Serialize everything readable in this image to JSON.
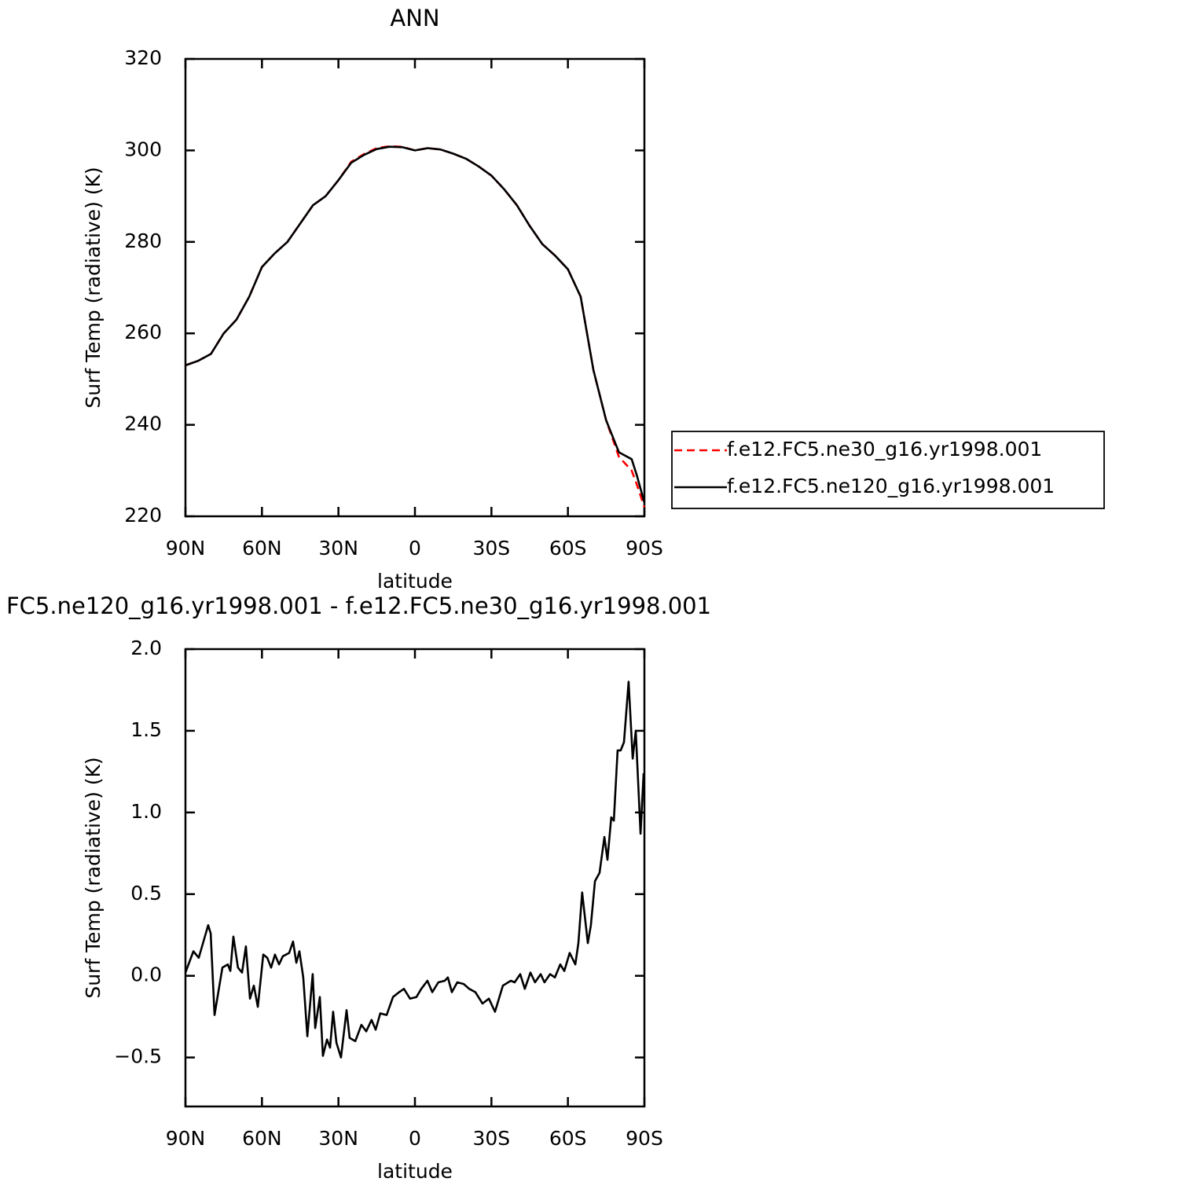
{
  "chart_data": [
    {
      "type": "line",
      "title": "ANN",
      "xlabel": "latitude",
      "ylabel": "Surf Temp (radiative) (K)",
      "x": [
        90,
        85,
        80,
        75,
        70,
        65,
        60,
        55,
        50,
        45,
        40,
        35,
        30,
        25,
        20,
        15,
        10,
        5,
        0,
        -5,
        -10,
        -15,
        -20,
        -25,
        -30,
        -35,
        -40,
        -45,
        -50,
        -55,
        -60,
        -65,
        -70,
        -75,
        -80,
        -85,
        -87,
        -90
      ],
      "series": [
        {
          "name": "f.e12.FC5.ne30_g16.yr1998.001",
          "color": "#ff0000",
          "line_style": "dashed",
          "values": [
            253,
            254,
            255.5,
            260,
            263,
            268,
            274.5,
            277.5,
            280,
            284,
            288,
            290,
            293.5,
            297.5,
            299.2,
            300.5,
            300.9,
            300.8,
            300,
            300.5,
            300.2,
            299.3,
            298.2,
            296.5,
            294.5,
            291.5,
            288,
            283.5,
            279.5,
            277,
            274,
            268,
            252,
            241,
            233,
            230,
            227,
            222
          ]
        },
        {
          "name": "f.e12.FC5.ne120_g16.yr1998.001",
          "color": "#000000",
          "line_style": "solid",
          "values": [
            253,
            254,
            255.5,
            260,
            263,
            268,
            274.5,
            277.5,
            280,
            284,
            288,
            290,
            293.5,
            297.3,
            299,
            300.3,
            300.8,
            300.7,
            300,
            300.5,
            300.2,
            299.3,
            298.2,
            296.5,
            294.5,
            291.5,
            288,
            283.5,
            279.5,
            277,
            274,
            268,
            252,
            241,
            234,
            232.5,
            229,
            223
          ]
        }
      ],
      "xlim": [
        90,
        -90
      ],
      "xticks": [
        {
          "value": 90,
          "label": "90N"
        },
        {
          "value": 60,
          "label": "60N"
        },
        {
          "value": 30,
          "label": "30N"
        },
        0,
        {
          "value": -30,
          "label": "30S"
        },
        {
          "value": -60,
          "label": "60S"
        },
        {
          "value": -90,
          "label": "90S"
        }
      ],
      "ylim": [
        220,
        320
      ],
      "yticks": [
        220,
        240,
        260,
        280,
        300,
        320
      ],
      "legend": "right"
    },
    {
      "type": "line",
      "title": "FC5.ne120_g16.yr1998.001 - f.e12.FC5.ne30_g16.yr1998.001",
      "xlabel": "latitude",
      "ylabel": "Surf Temp (radiative) (K)",
      "color": "#000000",
      "x": [
        90,
        86.9,
        84.8,
        81.1,
        80.1,
        78.6,
        75.5,
        73.4,
        72.4,
        71.2,
        69.4,
        67.8,
        66.3,
        64.7,
        63.2,
        61.6,
        59.5,
        57.9,
        56.4,
        54.9,
        53.3,
        51.8,
        49.3,
        47.8,
        46.5,
        45.3,
        43.8,
        42.2,
        40.1,
        39.1,
        37.3,
        36.1,
        34.5,
        33.3,
        32.1,
        30.8,
        29,
        26.8,
        25.6,
        23.4,
        21,
        19.1,
        17,
        15.4,
        13.6,
        11.1,
        8.6,
        6.2,
        4.3,
        1.9,
        -0.6,
        -2.5,
        -4.9,
        -6.8,
        -9.2,
        -11.7,
        -12.9,
        -14.5,
        -16.6,
        -19.1,
        -21.3,
        -23.7,
        -26.5,
        -29,
        -31.4,
        -34.5,
        -37.6,
        -39.1,
        -41.3,
        -43.1,
        -45.3,
        -47.1,
        -49.3,
        -50.8,
        -53,
        -54.9,
        -57,
        -58.6,
        -60.7,
        -62.9,
        -64.1,
        -65.6,
        -67.8,
        -69,
        -70.6,
        -72.4,
        -74.3,
        -75.5,
        -77,
        -78,
        -79.5,
        -80.7,
        -82,
        -83.8,
        -85.4,
        -86.6,
        -88.5,
        -89.7
      ],
      "values": [
        0.02,
        0.15,
        0.11,
        0.31,
        0.26,
        -0.24,
        0.05,
        0.07,
        0.03,
        0.24,
        0.05,
        0.02,
        0.18,
        -0.14,
        -0.06,
        -0.19,
        0.13,
        0.11,
        0.05,
        0.13,
        0.07,
        0.12,
        0.14,
        0.21,
        0.08,
        0.15,
        -0.01,
        -0.37,
        0.01,
        -0.32,
        -0.13,
        -0.49,
        -0.39,
        -0.44,
        -0.22,
        -0.41,
        -0.5,
        -0.21,
        -0.38,
        -0.4,
        -0.3,
        -0.34,
        -0.27,
        -0.33,
        -0.23,
        -0.24,
        -0.13,
        -0.1,
        -0.08,
        -0.14,
        -0.13,
        -0.08,
        -0.03,
        -0.1,
        -0.04,
        -0.03,
        -0.01,
        -0.1,
        -0.04,
        -0.05,
        -0.08,
        -0.1,
        -0.17,
        -0.14,
        -0.22,
        -0.06,
        -0.03,
        -0.04,
        0.01,
        -0.08,
        0.02,
        -0.04,
        0.01,
        -0.04,
        0.01,
        -0.01,
        0.07,
        0.03,
        0.14,
        0.07,
        0.2,
        0.51,
        0.2,
        0.31,
        0.58,
        0.63,
        0.85,
        0.71,
        0.97,
        0.95,
        1.38,
        1.38,
        1.43,
        1.8,
        1.33,
        1.5,
        0.87,
        1.24
      ],
      "xlim": [
        90,
        -90
      ],
      "xticks": [
        {
          "value": 90,
          "label": "90N"
        },
        {
          "value": 60,
          "label": "60N"
        },
        {
          "value": 30,
          "label": "30N"
        },
        0,
        {
          "value": -30,
          "label": "30S"
        },
        {
          "value": -60,
          "label": "60S"
        },
        {
          "value": -90,
          "label": "90S"
        }
      ],
      "ylim": [
        -0.8,
        2
      ],
      "yticks": [
        {
          "value": -0.5,
          "label": "−0.5"
        },
        {
          "value": 0,
          "label": "0.0"
        },
        0.5,
        {
          "value": 1,
          "label": "1.0"
        },
        1.5,
        {
          "value": 2,
          "label": "2.0"
        }
      ]
    }
  ]
}
